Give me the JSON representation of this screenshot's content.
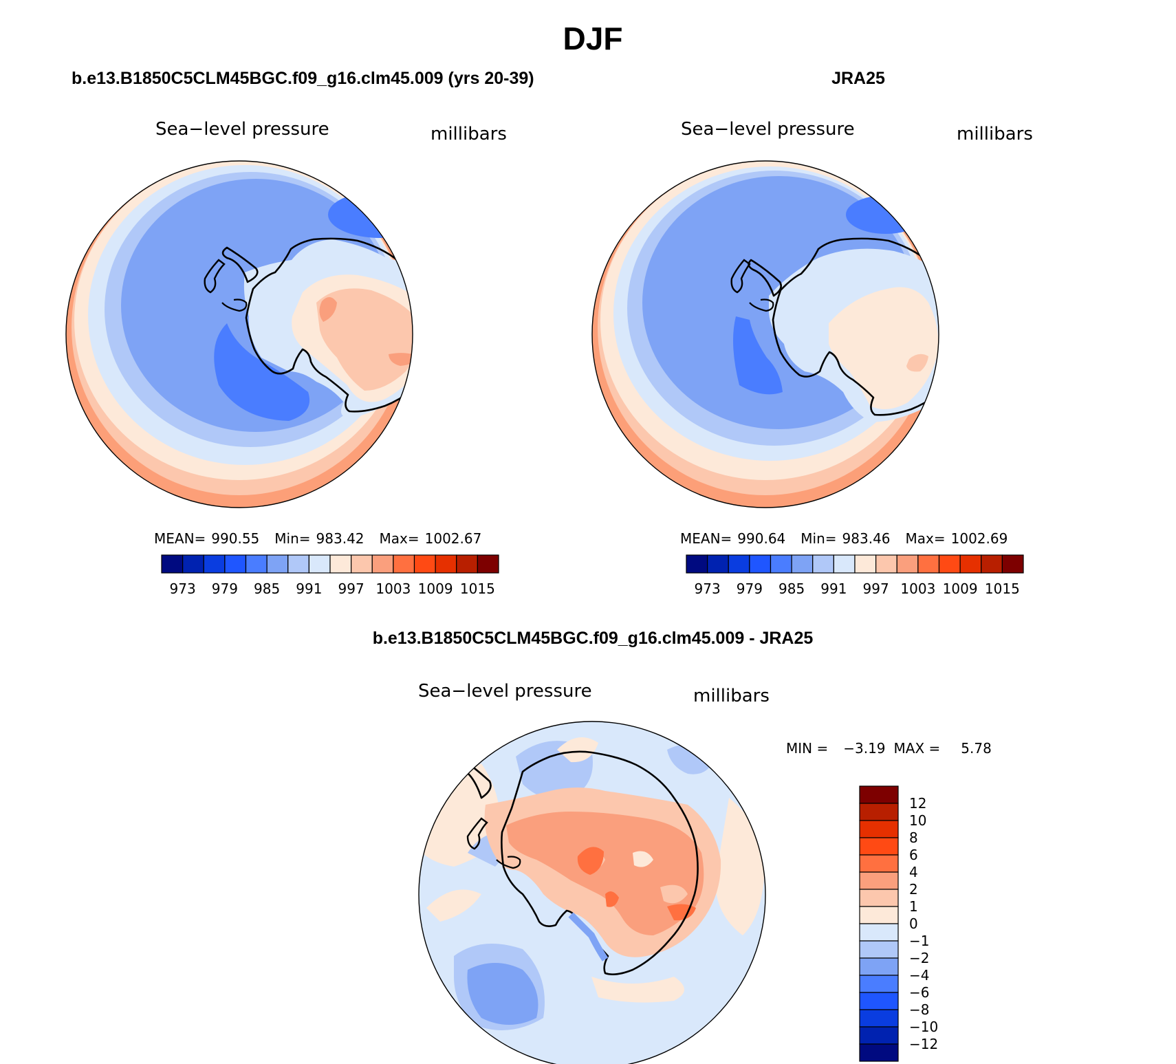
{
  "page_title": "DJF",
  "chart_data": [
    {
      "type": "map",
      "title": "b.e13.B1850C5CLM45BGC.f09_g16.clm45.009 (yrs 20-39)",
      "left_label": "Sea−level pressure",
      "right_label": "millibars",
      "stats": {
        "mean_label": "MEAN=",
        "mean": "990.55",
        "min_label": "Min=",
        "min": "983.42",
        "max_label": "Max=",
        "max": "1002.67"
      },
      "colorbar_ticks": [
        "973",
        "979",
        "985",
        "991",
        "997",
        "1003",
        "1009",
        "1015"
      ]
    },
    {
      "type": "map",
      "title": "JRA25",
      "left_label": "Sea−level pressure",
      "right_label": "millibars",
      "stats": {
        "mean_label": "MEAN=",
        "mean": "990.64",
        "min_label": "Min=",
        "min": "983.46",
        "max_label": "Max=",
        "max": "1002.69"
      },
      "colorbar_ticks": [
        "973",
        "979",
        "985",
        "991",
        "997",
        "1003",
        "1009",
        "1015"
      ]
    },
    {
      "type": "map",
      "title": "b.e13.B1850C5CLM45BGC.f09_g16.clm45.009 - JRA25",
      "left_label": "Sea−level pressure",
      "right_label": "millibars",
      "stats": {
        "min_label": "MIN =",
        "min": "−3.19",
        "max_label": "MAX =",
        "max": "5.78"
      },
      "colorbar_ticks": [
        "12",
        "10",
        "8",
        "6",
        "4",
        "2",
        "1",
        "0",
        "−1",
        "−2",
        "−4",
        "−6",
        "−8",
        "−10",
        "−12"
      ]
    }
  ],
  "colors": {
    "abs_scale": [
      "#000a80",
      "#0022b0",
      "#0a3de0",
      "#1f56ff",
      "#4a7dff",
      "#7ea3f5",
      "#b0c8f8",
      "#d9e8fb",
      "#fde9d9",
      "#fcc7ad",
      "#fa9f7d",
      "#ff7040",
      "#ff4a14",
      "#e63000",
      "#b81f00",
      "#7d0000"
    ],
    "diff_scale_top_to_bottom": [
      "#7d0000",
      "#b81f00",
      "#e63000",
      "#ff4a14",
      "#ff7040",
      "#fa9f7d",
      "#fcc7ad",
      "#fde9d9",
      "#d9e8fb",
      "#b0c8f8",
      "#7ea3f5",
      "#4a7dff",
      "#1f56ff",
      "#0a3de0",
      "#0022b0",
      "#000a80"
    ]
  }
}
